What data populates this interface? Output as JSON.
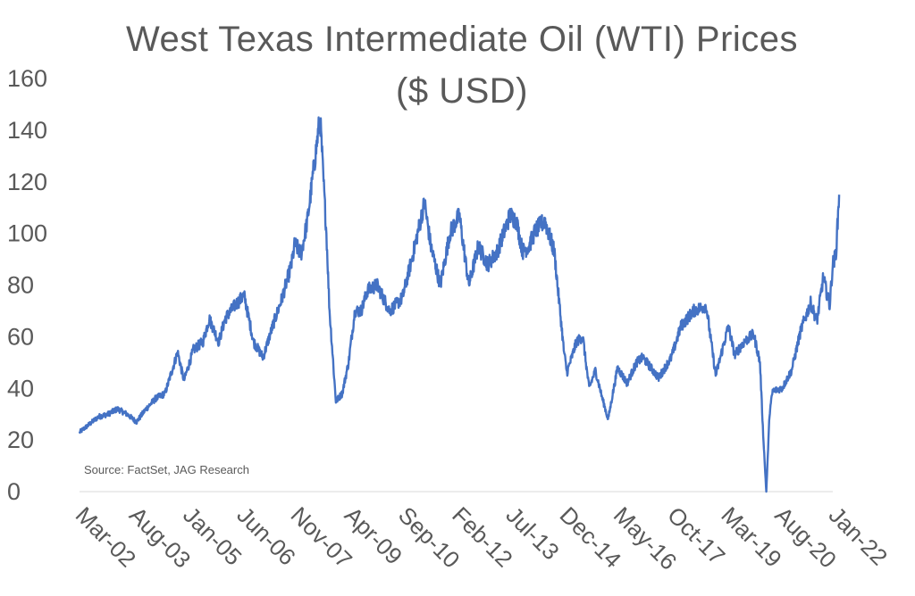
{
  "chart_data": {
    "type": "line",
    "title": "West Texas Intermediate Oil (WTI) Prices",
    "subtitle": "($ USD)",
    "source": "Source: FactSet, JAG Research",
    "ylim": [
      0,
      160
    ],
    "yticks": [
      0,
      20,
      40,
      60,
      80,
      100,
      120,
      140,
      160
    ],
    "xticks": [
      "Mar-02",
      "Aug-03",
      "Jan-05",
      "Jun-06",
      "Nov-07",
      "Apr-09",
      "Sep-10",
      "Feb-12",
      "Jul-13",
      "Dec-14",
      "May-16",
      "Oct-17",
      "Mar-19",
      "Aug-20",
      "Jan-22"
    ],
    "grid": false,
    "line_color": "#4472C4",
    "series": [
      {
        "points": [
          [
            "2002-03",
            23
          ],
          [
            "2002-06",
            26
          ],
          [
            "2002-09",
            29
          ],
          [
            "2002-12",
            30
          ],
          [
            "2003-03",
            32
          ],
          [
            "2003-06",
            30
          ],
          [
            "2003-09",
            27
          ],
          [
            "2003-12",
            32
          ],
          [
            "2004-03",
            36
          ],
          [
            "2004-06",
            38
          ],
          [
            "2004-10",
            54
          ],
          [
            "2004-12",
            43
          ],
          [
            "2005-03",
            55
          ],
          [
            "2005-06",
            58
          ],
          [
            "2005-08",
            67
          ],
          [
            "2005-11",
            58
          ],
          [
            "2006-01",
            67
          ],
          [
            "2006-04",
            72
          ],
          [
            "2006-07",
            76
          ],
          [
            "2006-10",
            58
          ],
          [
            "2007-01",
            52
          ],
          [
            "2007-04",
            64
          ],
          [
            "2007-07",
            75
          ],
          [
            "2007-10",
            88
          ],
          [
            "2007-11",
            96
          ],
          [
            "2008-01",
            92
          ],
          [
            "2008-03",
            105
          ],
          [
            "2008-05",
            125
          ],
          [
            "2008-07",
            145
          ],
          [
            "2008-09",
            100
          ],
          [
            "2008-10",
            70
          ],
          [
            "2008-12",
            35
          ],
          [
            "2009-02",
            38
          ],
          [
            "2009-04",
            50
          ],
          [
            "2009-06",
            70
          ],
          [
            "2009-08",
            70
          ],
          [
            "2009-10",
            78
          ],
          [
            "2010-01",
            80
          ],
          [
            "2010-05",
            70
          ],
          [
            "2010-09",
            75
          ],
          [
            "2010-12",
            90
          ],
          [
            "2011-04",
            112
          ],
          [
            "2011-06",
            95
          ],
          [
            "2011-09",
            80
          ],
          [
            "2011-12",
            100
          ],
          [
            "2012-03",
            107
          ],
          [
            "2012-06",
            80
          ],
          [
            "2012-09",
            95
          ],
          [
            "2012-12",
            88
          ],
          [
            "2013-03",
            93
          ],
          [
            "2013-07",
            107
          ],
          [
            "2013-09",
            105
          ],
          [
            "2013-11",
            93
          ],
          [
            "2014-01",
            95
          ],
          [
            "2014-03",
            101
          ],
          [
            "2014-06",
            105
          ],
          [
            "2014-09",
            93
          ],
          [
            "2014-12",
            55
          ],
          [
            "2015-01",
            46
          ],
          [
            "2015-04",
            58
          ],
          [
            "2015-06",
            60
          ],
          [
            "2015-08",
            40
          ],
          [
            "2015-10",
            47
          ],
          [
            "2015-12",
            37
          ],
          [
            "2016-02",
            28
          ],
          [
            "2016-05",
            48
          ],
          [
            "2016-08",
            42
          ],
          [
            "2016-11",
            50
          ],
          [
            "2017-01",
            52
          ],
          [
            "2017-06",
            44
          ],
          [
            "2017-10",
            52
          ],
          [
            "2018-01",
            64
          ],
          [
            "2018-05",
            70
          ],
          [
            "2018-09",
            72
          ],
          [
            "2018-12",
            45
          ],
          [
            "2019-04",
            64
          ],
          [
            "2019-06",
            53
          ],
          [
            "2019-09",
            58
          ],
          [
            "2019-12",
            61
          ],
          [
            "2020-02",
            50
          ],
          [
            "2020-03",
            22
          ],
          [
            "2020-04",
            0
          ],
          [
            "2020-05",
            30
          ],
          [
            "2020-06",
            39
          ],
          [
            "2020-09",
            40
          ],
          [
            "2020-12",
            47
          ],
          [
            "2021-03",
            63
          ],
          [
            "2021-06",
            73
          ],
          [
            "2021-08",
            66
          ],
          [
            "2021-10",
            83
          ],
          [
            "2021-12",
            72
          ],
          [
            "2022-01",
            88
          ],
          [
            "2022-02",
            92
          ],
          [
            "2022-03",
            115
          ]
        ]
      }
    ]
  }
}
